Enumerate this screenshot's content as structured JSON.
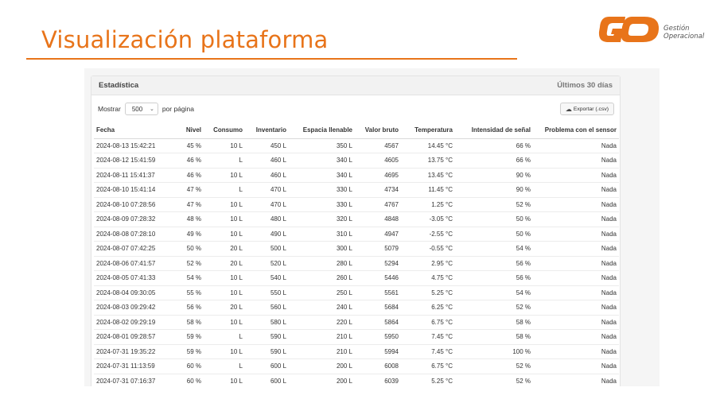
{
  "slide": {
    "title": "Visualización plataforma"
  },
  "logo": {
    "mark": "G",
    "line1": "Gestión",
    "line2": "Operacional"
  },
  "panel": {
    "title": "Estadística",
    "range": "Últimos 30 días"
  },
  "controls": {
    "show_label": "Mostrar",
    "page_size": "500",
    "per_page_label": "por página",
    "export_label": "Exportar (.csv)"
  },
  "table": {
    "headers": [
      "Fecha",
      "Nivel",
      "Consumo",
      "Inventario",
      "Espacia llenable",
      "Valor bruto",
      "Temperatura",
      "Intensidad de señal",
      "Problema con el sensor"
    ],
    "rows": [
      [
        "2024-08-13 15:42:21",
        "45 %",
        "10 L",
        "450 L",
        "350 L",
        "4567",
        "14.45 °C",
        "66 %",
        "Nada"
      ],
      [
        "2024-08-12 15:41:59",
        "46 %",
        "L",
        "460 L",
        "340 L",
        "4605",
        "13.75 °C",
        "66 %",
        "Nada"
      ],
      [
        "2024-08-11 15:41:37",
        "46 %",
        "10 L",
        "460 L",
        "340 L",
        "4695",
        "13.45 °C",
        "90 %",
        "Nada"
      ],
      [
        "2024-08-10 15:41:14",
        "47 %",
        "L",
        "470 L",
        "330 L",
        "4734",
        "11.45 °C",
        "90 %",
        "Nada"
      ],
      [
        "2024-08-10 07:28:56",
        "47 %",
        "10 L",
        "470 L",
        "330 L",
        "4767",
        "1.25 °C",
        "52 %",
        "Nada"
      ],
      [
        "2024-08-09 07:28:32",
        "48 %",
        "10 L",
        "480 L",
        "320 L",
        "4848",
        "-3.05 °C",
        "50 %",
        "Nada"
      ],
      [
        "2024-08-08 07:28:10",
        "49 %",
        "10 L",
        "490 L",
        "310 L",
        "4947",
        "-2.55 °C",
        "50 %",
        "Nada"
      ],
      [
        "2024-08-07 07:42:25",
        "50 %",
        "20 L",
        "500 L",
        "300 L",
        "5079",
        "-0.55 °C",
        "54 %",
        "Nada"
      ],
      [
        "2024-08-06 07:41:57",
        "52 %",
        "20 L",
        "520 L",
        "280 L",
        "5294",
        "2.95 °C",
        "56 %",
        "Nada"
      ],
      [
        "2024-08-05 07:41:33",
        "54 %",
        "10 L",
        "540 L",
        "260 L",
        "5446",
        "4.75 °C",
        "56 %",
        "Nada"
      ],
      [
        "2024-08-04 09:30:05",
        "55 %",
        "10 L",
        "550 L",
        "250 L",
        "5561",
        "5.25 °C",
        "54 %",
        "Nada"
      ],
      [
        "2024-08-03 09:29:42",
        "56 %",
        "20 L",
        "560 L",
        "240 L",
        "5684",
        "6.25 °C",
        "52 %",
        "Nada"
      ],
      [
        "2024-08-02 09:29:19",
        "58 %",
        "10 L",
        "580 L",
        "220 L",
        "5864",
        "6.75 °C",
        "58 %",
        "Nada"
      ],
      [
        "2024-08-01 09:28:57",
        "59 %",
        "L",
        "590 L",
        "210 L",
        "5950",
        "7.45 °C",
        "58 %",
        "Nada"
      ],
      [
        "2024-07-31 19:35:22",
        "59 %",
        "10 L",
        "590 L",
        "210 L",
        "5994",
        "7.45 °C",
        "100 %",
        "Nada"
      ],
      [
        "2024-07-31 11:13:59",
        "60 %",
        "L",
        "600 L",
        "200 L",
        "6008",
        "6.75 °C",
        "52 %",
        "Nada"
      ],
      [
        "2024-07-31 07:16:37",
        "60 %",
        "10 L",
        "600 L",
        "200 L",
        "6039",
        "5.25 °C",
        "52 %",
        "Nada"
      ]
    ]
  },
  "colors": {
    "accent": "#e8741a",
    "logo": "#e8741a"
  },
  "icons": {
    "select_chevron": "chevron-down-icon",
    "export": "cloud-download-icon"
  }
}
